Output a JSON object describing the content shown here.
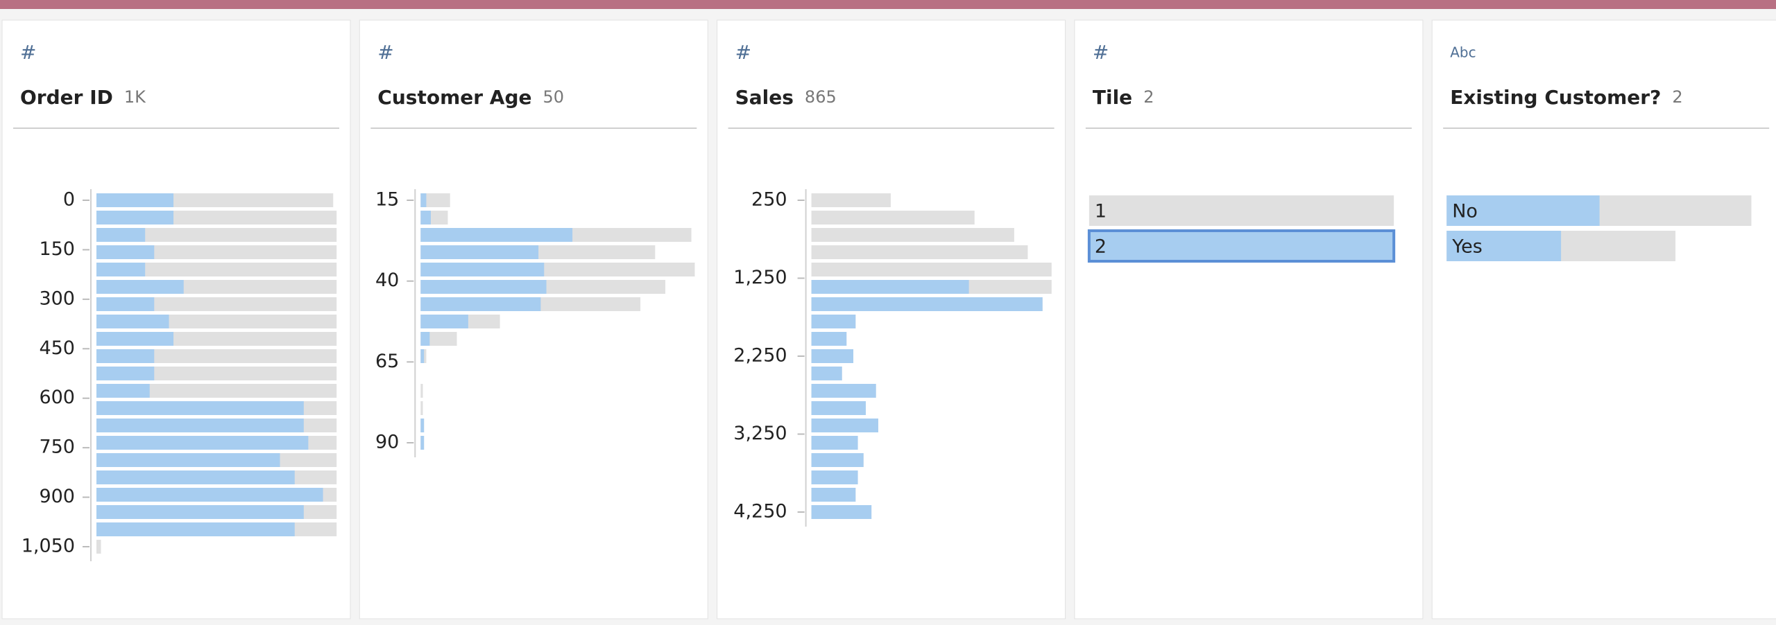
{
  "cards": [
    {
      "icon": "#",
      "title": "Order ID",
      "count": "1K",
      "kind": "histogram",
      "ylim": [
        0,
        1050
      ],
      "yticks": [
        0,
        150,
        300,
        450,
        600,
        750,
        900,
        {
          "value": 1050,
          "label": "1,050"
        }
      ],
      "bars": [
        {
          "total": 209,
          "selected": 68
        },
        {
          "total": 212,
          "selected": 68
        },
        {
          "total": 212,
          "selected": 43
        },
        {
          "total": 212,
          "selected": 51
        },
        {
          "total": 212,
          "selected": 43
        },
        {
          "total": 212,
          "selected": 77
        },
        {
          "total": 212,
          "selected": 51
        },
        {
          "total": 212,
          "selected": 64
        },
        {
          "total": 212,
          "selected": 68
        },
        {
          "total": 212,
          "selected": 51
        },
        {
          "total": 212,
          "selected": 51
        },
        {
          "total": 212,
          "selected": 47
        },
        {
          "total": 212,
          "selected": 183
        },
        {
          "total": 212,
          "selected": 183
        },
        {
          "total": 212,
          "selected": 187
        },
        {
          "total": 212,
          "selected": 162
        },
        {
          "total": 212,
          "selected": 175
        },
        {
          "total": 212,
          "selected": 200
        },
        {
          "total": 212,
          "selected": 183
        },
        {
          "total": 212,
          "selected": 175
        },
        {
          "total": 4,
          "selected": 0
        }
      ]
    },
    {
      "icon": "#",
      "title": "Customer Age",
      "count": "50",
      "kind": "histogram",
      "ylim": [
        15,
        90
      ],
      "yticks": [
        15,
        40,
        65,
        90
      ],
      "bars": [
        {
          "total": 26,
          "selected": 5
        },
        {
          "total": 24,
          "selected": 9
        },
        {
          "total": 239,
          "selected": 134
        },
        {
          "total": 207,
          "selected": 104
        },
        {
          "total": 242,
          "selected": 109
        },
        {
          "total": 216,
          "selected": 111
        },
        {
          "total": 194,
          "selected": 106
        },
        {
          "total": 70,
          "selected": 42
        },
        {
          "total": 32,
          "selected": 8
        },
        {
          "total": 5,
          "selected": 3
        },
        {
          "total": 0,
          "selected": 0
        },
        {
          "total": 2,
          "selected": 0
        },
        {
          "total": 2,
          "selected": 0
        },
        {
          "total": 3,
          "selected": 3
        },
        {
          "total": 3,
          "selected": 3
        }
      ]
    },
    {
      "icon": "#",
      "title": "Sales",
      "count": "865",
      "kind": "histogram",
      "ylim": [
        250,
        4250
      ],
      "yticks": [
        250,
        {
          "value": 1250,
          "label": "1,250"
        },
        {
          "value": 2250,
          "label": "2,250"
        },
        {
          "value": 3250,
          "label": "3,250"
        },
        {
          "value": 4250,
          "label": "4,250"
        }
      ],
      "bars": [
        {
          "total": 70,
          "selected": 0
        },
        {
          "total": 144,
          "selected": 0
        },
        {
          "total": 179,
          "selected": 0
        },
        {
          "total": 191,
          "selected": 0
        },
        {
          "total": 212,
          "selected": 0
        },
        {
          "total": 212,
          "selected": 139
        },
        {
          "total": 204,
          "selected": 204
        },
        {
          "total": 39,
          "selected": 39
        },
        {
          "total": 31,
          "selected": 31
        },
        {
          "total": 37,
          "selected": 37
        },
        {
          "total": 27,
          "selected": 27
        },
        {
          "total": 57,
          "selected": 57
        },
        {
          "total": 48,
          "selected": 48
        },
        {
          "total": 59,
          "selected": 59
        },
        {
          "total": 41,
          "selected": 41
        },
        {
          "total": 46,
          "selected": 46
        },
        {
          "total": 41,
          "selected": 41
        },
        {
          "total": 39,
          "selected": 39
        },
        {
          "total": 53,
          "selected": 53
        }
      ]
    },
    {
      "icon": "#",
      "title": "Tile",
      "count": "2",
      "kind": "categories",
      "bars": [
        {
          "label": "1",
          "total": 269,
          "selected": 0
        },
        {
          "label": "2",
          "total": 269,
          "selected": 269,
          "outlined": true
        }
      ]
    },
    {
      "icon": "Abc",
      "title": "Existing Customer?",
      "count": "2",
      "kind": "categories",
      "bars": [
        {
          "label": "No",
          "total": 269,
          "selected": 135
        },
        {
          "label": "Yes",
          "total": 202,
          "selected": 101
        }
      ]
    }
  ]
}
